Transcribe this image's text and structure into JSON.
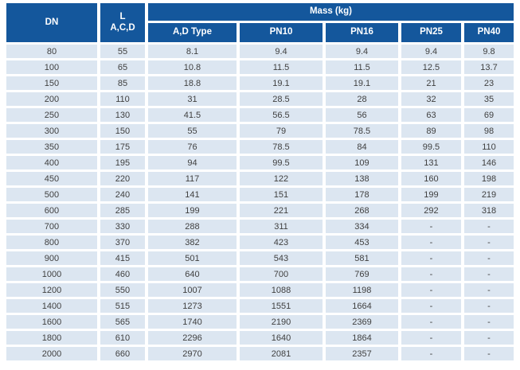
{
  "table": {
    "header": {
      "col_dn": "DN",
      "col_l_line1": "L",
      "col_l_line2": "A,C,D",
      "mass_group": "Mass (kg)",
      "sub_columns": [
        "A,D Type",
        "PN10",
        "PN16",
        "PN25",
        "PN40"
      ]
    },
    "rows": [
      [
        "80",
        "55",
        "8.1",
        "9.4",
        "9.4",
        "9.4",
        "9.8"
      ],
      [
        "100",
        "65",
        "10.8",
        "11.5",
        "11.5",
        "12.5",
        "13.7"
      ],
      [
        "150",
        "85",
        "18.8",
        "19.1",
        "19.1",
        "21",
        "23"
      ],
      [
        "200",
        "110",
        "31",
        "28.5",
        "28",
        "32",
        "35"
      ],
      [
        "250",
        "130",
        "41.5",
        "56.5",
        "56",
        "63",
        "69"
      ],
      [
        "300",
        "150",
        "55",
        "79",
        "78.5",
        "89",
        "98"
      ],
      [
        "350",
        "175",
        "76",
        "78.5",
        "84",
        "99.5",
        "110"
      ],
      [
        "400",
        "195",
        "94",
        "99.5",
        "109",
        "131",
        "146"
      ],
      [
        "450",
        "220",
        "117",
        "122",
        "138",
        "160",
        "198"
      ],
      [
        "500",
        "240",
        "141",
        "151",
        "178",
        "199",
        "219"
      ],
      [
        "600",
        "285",
        "199",
        "221",
        "268",
        "292",
        "318"
      ],
      [
        "700",
        "330",
        "288",
        "311",
        "334",
        "-",
        "-"
      ],
      [
        "800",
        "370",
        "382",
        "423",
        "453",
        "-",
        "-"
      ],
      [
        "900",
        "415",
        "501",
        "543",
        "581",
        "-",
        "-"
      ],
      [
        "1000",
        "460",
        "640",
        "700",
        "769",
        "-",
        "-"
      ],
      [
        "1200",
        "550",
        "1007",
        "1088",
        "1198",
        "-",
        "-"
      ],
      [
        "1400",
        "515",
        "1273",
        "1551",
        "1664",
        "-",
        "-"
      ],
      [
        "1600",
        "565",
        "1740",
        "2190",
        "2369",
        "-",
        "-"
      ],
      [
        "1800",
        "610",
        "2296",
        "1640",
        "1864",
        "-",
        "-"
      ],
      [
        "2000",
        "660",
        "2970",
        "2081",
        "2357",
        "-",
        "-"
      ]
    ]
  },
  "colors": {
    "header_bg": "#14579c",
    "header_text": "#ffffff",
    "row_bg": "#dce6f1",
    "body_text": "#404040",
    "page_bg": "#ffffff"
  }
}
